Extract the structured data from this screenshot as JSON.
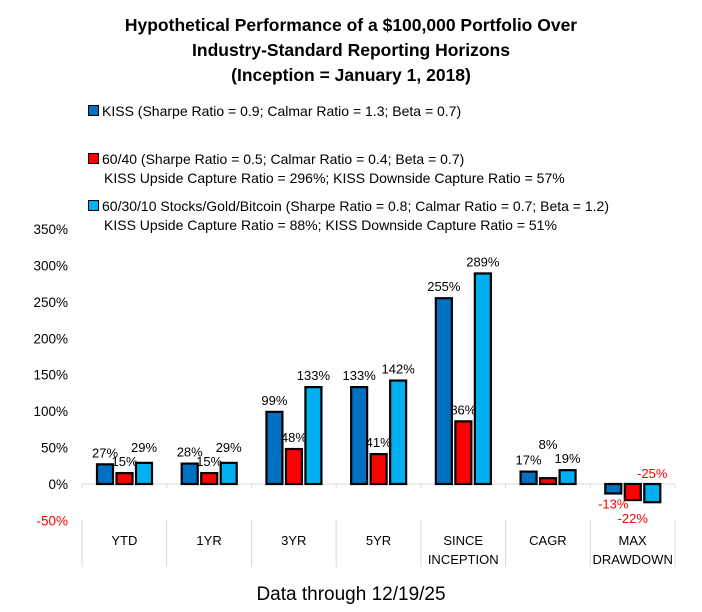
{
  "chart_data": {
    "type": "bar",
    "title": [
      "Hypothetical Performance of a $100,000 Portfolio Over",
      "Industry-Standard Reporting Horizons",
      "(Inception = January 1, 2018)"
    ],
    "categories": [
      [
        "YTD"
      ],
      [
        "1YR"
      ],
      [
        "3YR"
      ],
      [
        "5YR"
      ],
      [
        "SINCE",
        "INCEPTION"
      ],
      [
        "CAGR"
      ],
      [
        "MAX",
        "DRAWDOWN"
      ]
    ],
    "series": [
      {
        "name": "KISS (Sharpe Ratio = 0.9; Calmar Ratio = 1.3; Beta = 0.7)",
        "sub": "",
        "color": "#0070C0",
        "values": [
          27,
          28,
          99,
          133,
          255,
          17,
          -13
        ],
        "labels": [
          "27%",
          "28%",
          "99%",
          "133%",
          "255%",
          "17%",
          "-13%"
        ]
      },
      {
        "name": "60/40 (Sharpe Ratio = 0.5; Calmar Ratio = 0.4; Beta = 0.7)",
        "sub": "KISS Upside Capture Ratio = 296%; KISS Downside Capture Ratio = 57%",
        "color": "#FF0000",
        "values": [
          15,
          15,
          48,
          41,
          86,
          8,
          -22
        ],
        "labels": [
          "15%",
          "15%",
          "48%",
          "41%",
          "86%",
          "8%",
          "-22%"
        ]
      },
      {
        "name": "60/30/10 Stocks/Gold/Bitcoin (Sharpe Ratio = 0.8; Calmar Ratio = 0.7; Beta = 1.2)",
        "sub": "KISS Upside Capture Ratio = 88%; KISS Downside Capture Ratio = 51%",
        "color": "#00B0F0",
        "values": [
          29,
          29,
          133,
          142,
          289,
          19,
          -25
        ],
        "labels": [
          "29%",
          "29%",
          "133%",
          "142%",
          "289%",
          "19%",
          "-25%"
        ]
      }
    ],
    "ylim": [
      -50,
      350
    ],
    "yticks": [
      "350%",
      "300%",
      "250%",
      "200%",
      "150%",
      "100%",
      "50%",
      "0%",
      "-50%"
    ],
    "negative_color": "#FF0000",
    "grid": false,
    "legend": "top",
    "footer": "Data through 12/19/25"
  }
}
